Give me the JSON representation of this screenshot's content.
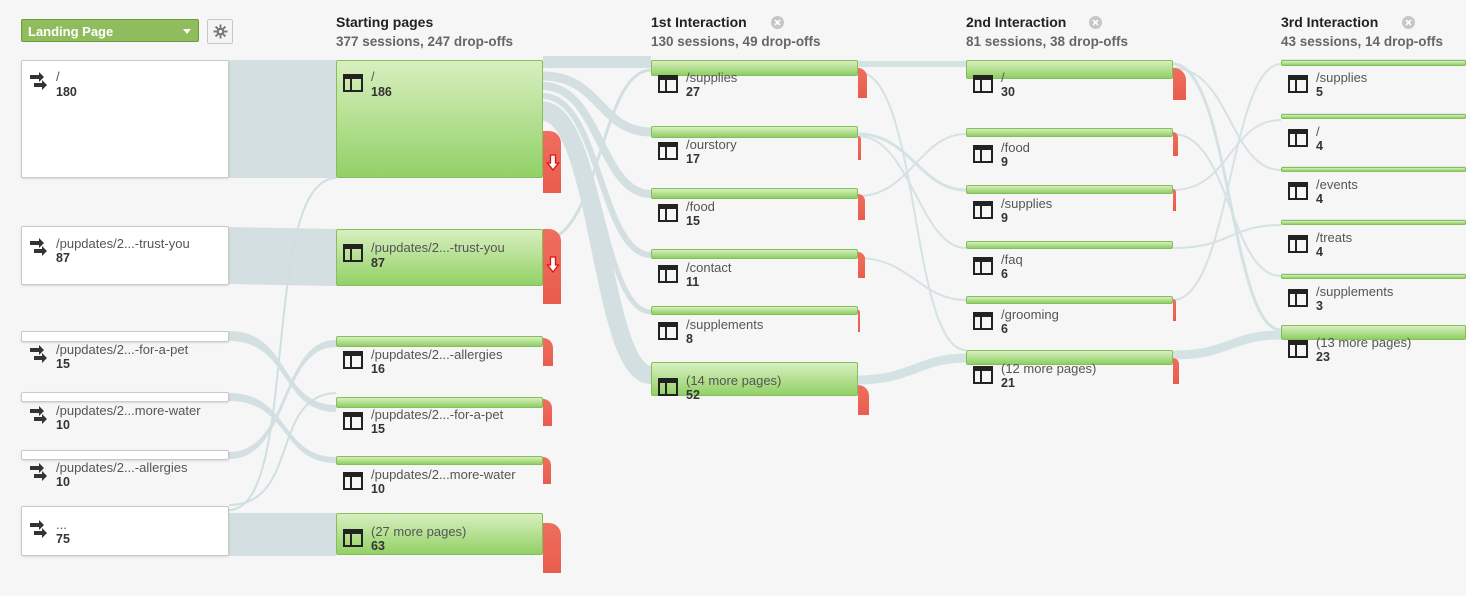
{
  "toolbar": {
    "dimension_label": "Landing Page",
    "settings_icon": "gear-icon",
    "dropdown_icon": "chevron-down-icon"
  },
  "columns": [
    {
      "title": "Starting pages",
      "subtitle": "377 sessions, 247 drop-offs"
    },
    {
      "title": "1st Interaction",
      "subtitle": "130 sessions, 49 drop-offs",
      "close_icon": "close-icon"
    },
    {
      "title": "2nd Interaction",
      "subtitle": "81 sessions, 38 drop-offs",
      "close_icon": "close-icon"
    },
    {
      "title": "3rd Interaction",
      "subtitle": "43 sessions, 14 drop-offs",
      "close_icon": "close-icon"
    }
  ],
  "landing_pages": [
    {
      "label": "/",
      "count": "180",
      "icon": "entrance-arrows-icon"
    },
    {
      "label": "/pupdates/2...-trust-you",
      "count": "87",
      "icon": "entrance-arrows-icon"
    },
    {
      "label": "/pupdates/2...-for-a-pet",
      "count": "15",
      "icon": "entrance-arrows-icon"
    },
    {
      "label": "/pupdates/2...more-water",
      "count": "10",
      "icon": "entrance-arrows-icon"
    },
    {
      "label": "/pupdates/2...-allergies",
      "count": "10",
      "icon": "entrance-arrows-icon"
    },
    {
      "label": "...",
      "count": "75",
      "icon": "entrance-arrows-icon"
    }
  ],
  "starting_pages": [
    {
      "label": "/",
      "count": "186",
      "icon": "page-icon",
      "dropoff_icon": "red-down-arrow-icon"
    },
    {
      "label": "/pupdates/2...-trust-you",
      "count": "87",
      "icon": "page-icon",
      "dropoff_icon": "red-down-arrow-icon"
    },
    {
      "label": "/pupdates/2...-allergies",
      "count": "16",
      "icon": "page-icon"
    },
    {
      "label": "/pupdates/2...-for-a-pet",
      "count": "15",
      "icon": "page-icon"
    },
    {
      "label": "/pupdates/2...more-water",
      "count": "10",
      "icon": "page-icon"
    },
    {
      "label": "(27 more pages)",
      "count": "63",
      "icon": "page-icon"
    }
  ],
  "interaction_1": [
    {
      "label": "/supplies",
      "count": "27"
    },
    {
      "label": "/ourstory",
      "count": "17"
    },
    {
      "label": "/food",
      "count": "15"
    },
    {
      "label": "/contact",
      "count": "11"
    },
    {
      "label": "/supplements",
      "count": "8"
    },
    {
      "label": "(14 more pages)",
      "count": "52"
    }
  ],
  "interaction_2": [
    {
      "label": "/",
      "count": "30"
    },
    {
      "label": "/food",
      "count": "9"
    },
    {
      "label": "/supplies",
      "count": "9"
    },
    {
      "label": "/faq",
      "count": "6"
    },
    {
      "label": "/grooming",
      "count": "6"
    },
    {
      "label": "(12 more pages)",
      "count": "21"
    }
  ],
  "interaction_3": [
    {
      "label": "/supplies",
      "count": "5"
    },
    {
      "label": "/",
      "count": "4"
    },
    {
      "label": "/events",
      "count": "4"
    },
    {
      "label": "/treats",
      "count": "4"
    },
    {
      "label": "/supplements",
      "count": "3"
    },
    {
      "label": "(13 more pages)",
      "count": "23"
    }
  ],
  "colors": {
    "node_green": "#92d166",
    "dropoff_red": "#e85d4d",
    "flow_gray": "#d3e0e2",
    "dimension_button": "#8fbc5c"
  }
}
